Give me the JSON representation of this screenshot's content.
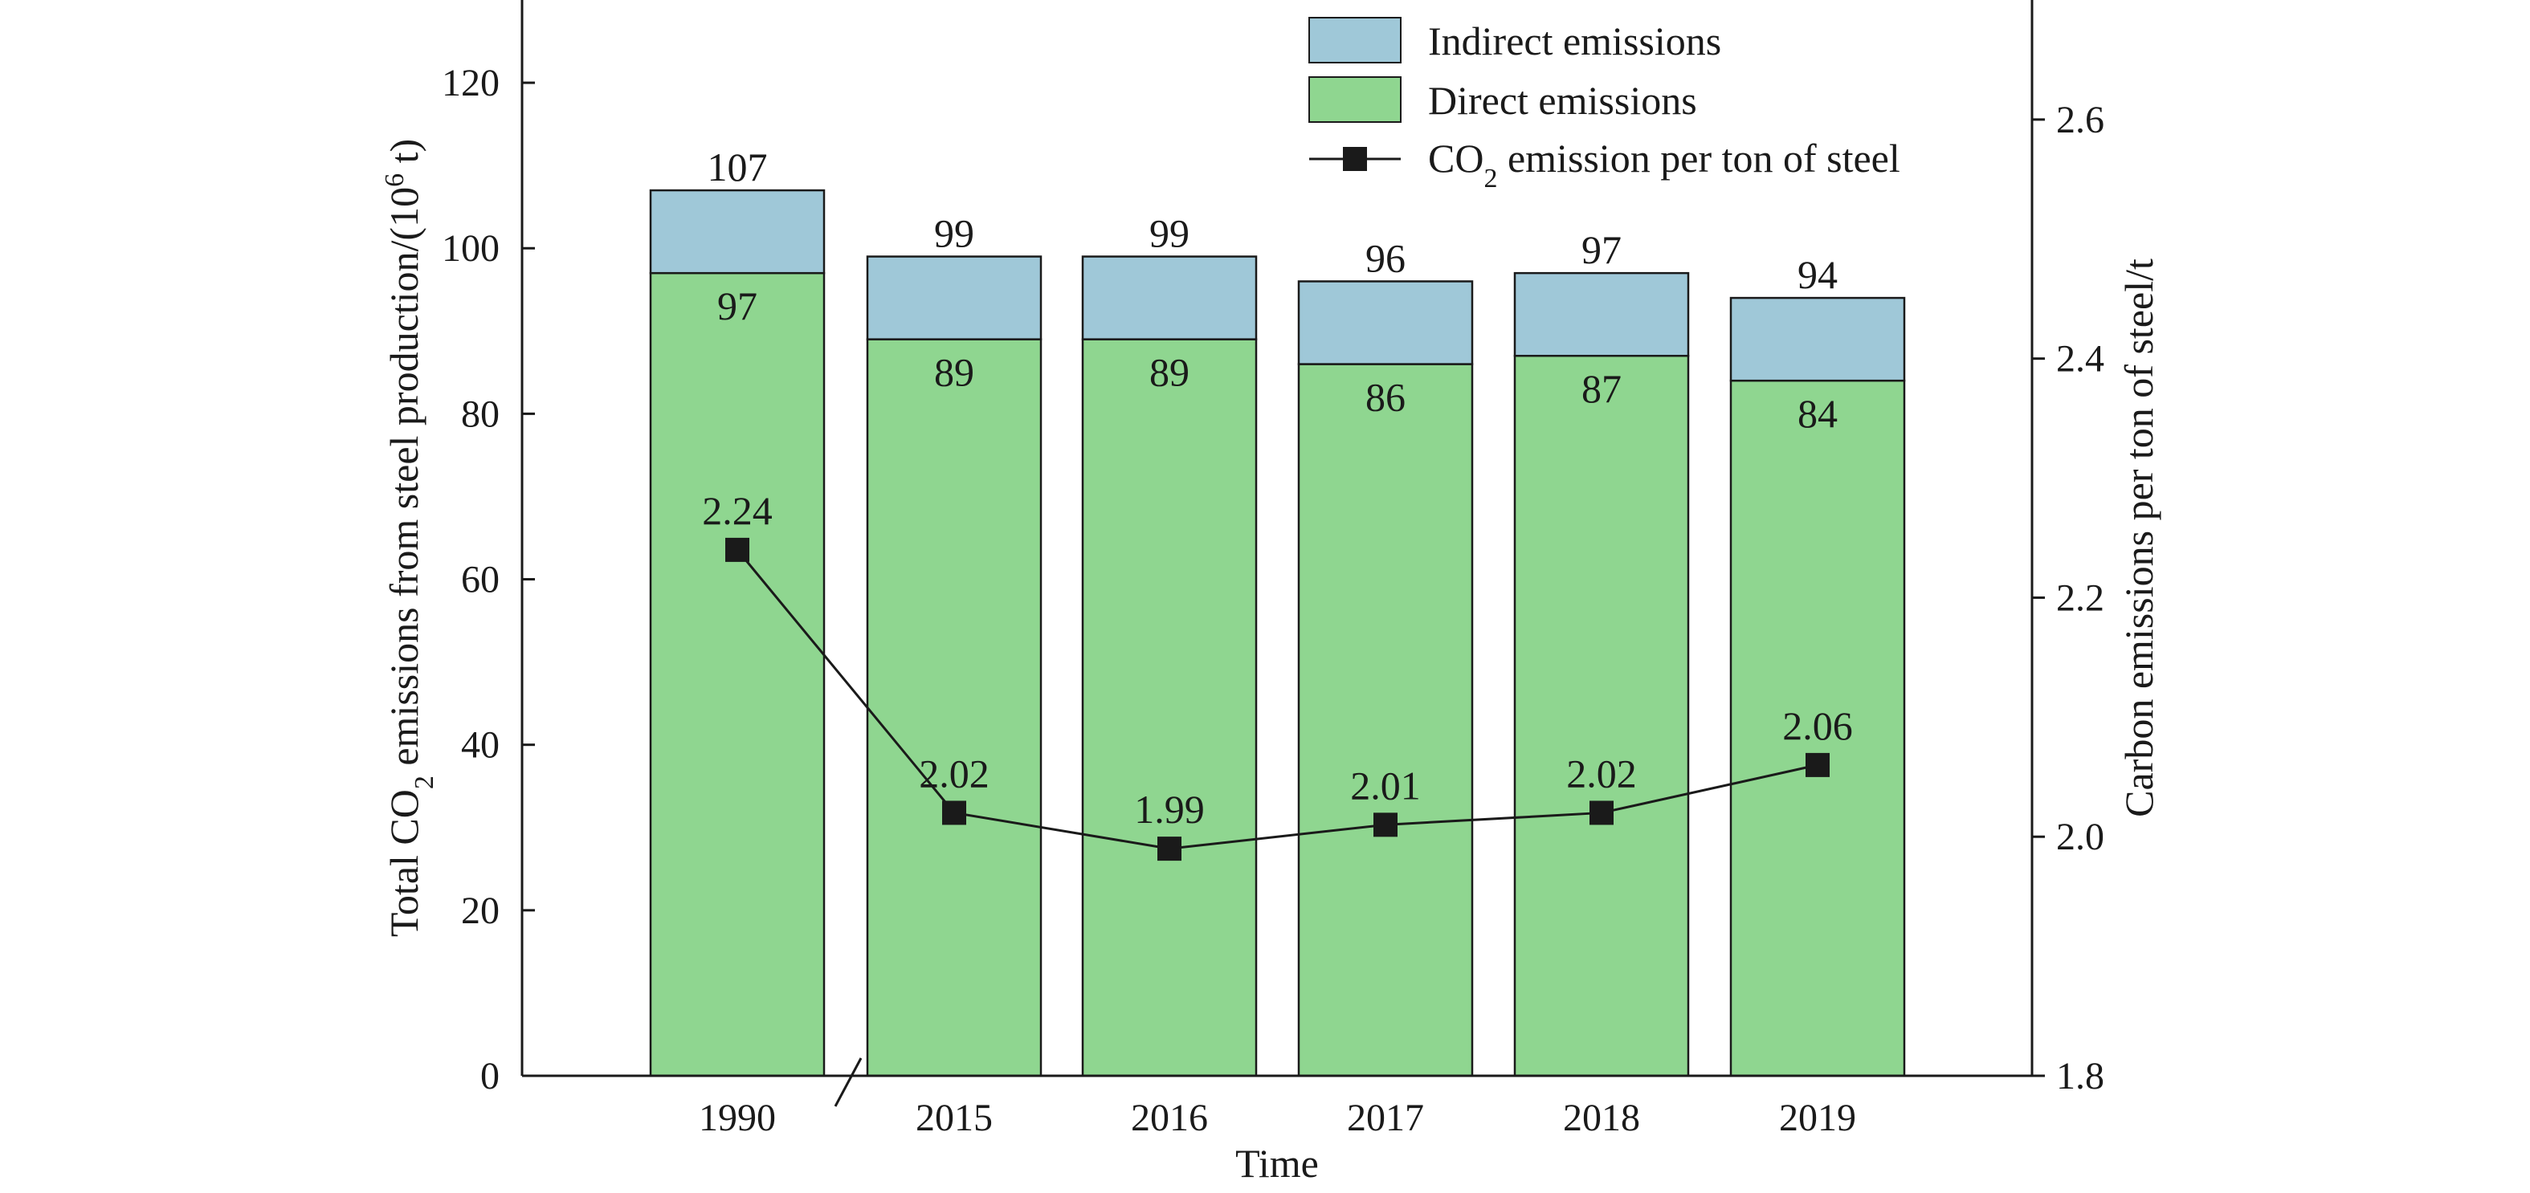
{
  "chart_data": {
    "type": "bar",
    "stacked": true,
    "categories": [
      "1990",
      "2015",
      "2016",
      "2017",
      "2018",
      "2019"
    ],
    "series": [
      {
        "name": "Direct emissions",
        "values": [
          97,
          89,
          89,
          86,
          87,
          84
        ],
        "color": "#8fd690",
        "axis": "left"
      },
      {
        "name": "Indirect emissions",
        "values": [
          10,
          10,
          10,
          10,
          10,
          10
        ],
        "color": "#9fc8d8",
        "axis": "left"
      }
    ],
    "totals": [
      107,
      99,
      99,
      96,
      97,
      94
    ],
    "direct_labels": [
      "97",
      "89",
      "89",
      "86",
      "87",
      "84"
    ],
    "total_labels": [
      "107",
      "99",
      "99",
      "96",
      "97",
      "94"
    ],
    "line_series": {
      "name_text": "CO",
      "name_sub": "2",
      "name_rest": " emission per ton of steel",
      "values": [
        2.24,
        2.02,
        1.99,
        2.01,
        2.02,
        2.06
      ],
      "labels": [
        "2.24",
        "2.02",
        "1.99",
        "2.01",
        "2.02",
        "2.06"
      ],
      "color": "#1a1a1a",
      "marker": "square",
      "axis": "right"
    },
    "xlabel": "Time",
    "ylabel": {
      "pre": "Total CO",
      "sub": "2",
      "mid": " emissions from steel production/(10",
      "sup": "6",
      "post": " t)"
    },
    "y2label": "Carbon emissions per ton of steel/t",
    "ylim": [
      0,
      130
    ],
    "y2lim": [
      1.8,
      2.7
    ],
    "yticks": [
      0,
      20,
      40,
      60,
      80,
      100,
      120
    ],
    "y2ticks": [
      1.8,
      2.0,
      2.2,
      2.4,
      2.6
    ],
    "y2tick_labels": [
      "1.8",
      "2.0",
      "2.2",
      "2.4",
      "2.6"
    ],
    "axis_break": "between 1990 and 2015",
    "legend": {
      "placement": "top-right",
      "entries": [
        "Indirect emissions",
        "Direct emissions"
      ]
    },
    "grid": false
  }
}
